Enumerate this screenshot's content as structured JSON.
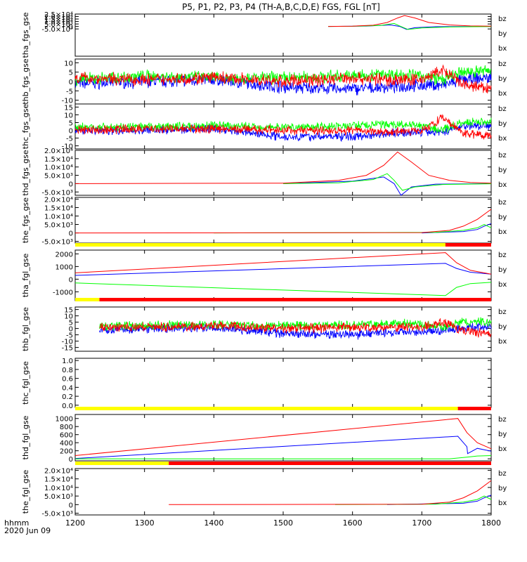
{
  "title": "P5, P1, P2, P3, P4 (TH-A,B,C,D,E) FGS, FGL [nT]",
  "time_axis": {
    "label_line1": "hhmm",
    "label_line2": "2020 Jun 09",
    "ticks": [
      "1200",
      "1300",
      "1400",
      "1500",
      "1600",
      "1700",
      "1800"
    ]
  },
  "colors": {
    "bz": "#ff0000",
    "by": "#00ff00",
    "bx": "#0000ff",
    "mode_slow": "#ffff00",
    "mode_fast": "#ff0000"
  },
  "chart_data": [
    {
      "type": "line",
      "ylabel": "tha_fgs_gse",
      "xlim": [
        1200,
        1800
      ],
      "ylim": [
        -60000,
        25000
      ],
      "yticks": [
        "2.5×10⁴",
        "2.0×10⁴",
        "1.5×10⁴",
        "1.0×10⁴",
        "5.0×10³",
        "0",
        "-5.0×10³"
      ],
      "ytick_values": [
        25000,
        20000,
        15000,
        10000,
        5000,
        0,
        -5000
      ],
      "legend": [
        "bz",
        "by",
        "bx"
      ],
      "series": [
        {
          "name": "bz",
          "x": [
            1565,
            1600,
            1630,
            1650,
            1665,
            1675,
            1690,
            1710,
            1740,
            1770,
            1800
          ],
          "y": [
            0,
            600,
            2500,
            8000,
            17000,
            22000,
            17000,
            8000,
            3000,
            1000,
            500
          ]
        },
        {
          "name": "by",
          "x": [
            1565,
            1600,
            1640,
            1660,
            1668,
            1680,
            1700,
            1740,
            1800
          ],
          "y": [
            0,
            400,
            2000,
            6000,
            1000,
            -6000,
            -3000,
            -1000,
            -200
          ]
        },
        {
          "name": "bx",
          "x": [
            1565,
            1620,
            1655,
            1668,
            1678,
            1690,
            1720,
            1800
          ],
          "y": [
            0,
            800,
            3000,
            0,
            -6000,
            -2500,
            -500,
            0
          ]
        }
      ]
    },
    {
      "type": "line",
      "ylabel": "thb_fgs_gse",
      "xlim": [
        1200,
        1800
      ],
      "ylim": [
        -12,
        12
      ],
      "yticks": [
        "10",
        "5",
        "0",
        "-5",
        "-10"
      ],
      "ytick_values": [
        10,
        5,
        0,
        -5,
        -10
      ],
      "legend": [
        "bz",
        "by",
        "bx"
      ],
      "series": [
        {
          "name": "bz",
          "x": [
            1200,
            1300,
            1400,
            1500,
            1600,
            1650,
            1700,
            1730,
            1760,
            1800
          ],
          "y": [
            2,
            1,
            2,
            0,
            2,
            1,
            1,
            6,
            -2,
            -4
          ]
        },
        {
          "name": "by",
          "x": [
            1200,
            1300,
            1400,
            1500,
            1600,
            1650,
            1700,
            1730,
            1760,
            1800
          ],
          "y": [
            1,
            3,
            2,
            2,
            3,
            4,
            3,
            1,
            5,
            6
          ]
        },
        {
          "name": "bx",
          "x": [
            1200,
            1300,
            1400,
            1500,
            1600,
            1650,
            1700,
            1730,
            1760,
            1800
          ],
          "y": [
            -1,
            0,
            1,
            -3,
            -4,
            -3,
            -2,
            -2,
            1,
            2
          ]
        }
      ]
    },
    {
      "type": "line",
      "ylabel": "thc_fgs_gse",
      "xlim": [
        1200,
        1800
      ],
      "ylim": [
        -12,
        17
      ],
      "yticks": [
        "15",
        "10",
        "5",
        "0",
        "-5",
        "-10"
      ],
      "ytick_values": [
        15,
        10,
        5,
        0,
        -5,
        -10
      ],
      "legend": [
        "bz",
        "by",
        "bx"
      ],
      "series": [
        {
          "name": "bz",
          "x": [
            1200,
            1300,
            1400,
            1500,
            1600,
            1650,
            1700,
            1730,
            1760,
            1800
          ],
          "y": [
            0,
            1,
            1,
            0,
            0,
            -1,
            0,
            8,
            -2,
            -3
          ]
        },
        {
          "name": "by",
          "x": [
            1200,
            1300,
            1400,
            1500,
            1600,
            1650,
            1700,
            1730,
            1760,
            1800
          ],
          "y": [
            2,
            2,
            3,
            2,
            3,
            4,
            3,
            0,
            5,
            6
          ]
        },
        {
          "name": "bx",
          "x": [
            1200,
            1300,
            1400,
            1500,
            1600,
            1650,
            1700,
            1730,
            1760,
            1800
          ],
          "y": [
            0,
            0,
            1,
            -4,
            -4,
            -2,
            -1,
            -1,
            3,
            3
          ]
        }
      ]
    },
    {
      "type": "line",
      "ylabel": "thd_fgs_gse",
      "xlim": [
        1200,
        1800
      ],
      "ylim": [
        -7000,
        20000
      ],
      "yticks": [
        "2.0×10⁴",
        "1.5×10⁴",
        "1.0×10⁴",
        "5.0×10³",
        "0",
        "-5.0×10³"
      ],
      "ytick_values": [
        20000,
        15000,
        10000,
        5000,
        0,
        -5000
      ],
      "legend": [
        "bz",
        "by",
        "bx"
      ],
      "series": [
        {
          "name": "bz",
          "x": [
            1200,
            1500,
            1580,
            1620,
            1645,
            1665,
            1685,
            1710,
            1740,
            1770,
            1800
          ],
          "y": [
            0,
            300,
            2000,
            5000,
            11000,
            19000,
            13000,
            5000,
            2000,
            700,
            300
          ]
        },
        {
          "name": "by",
          "x": [
            1500,
            1580,
            1630,
            1650,
            1660,
            1672,
            1690,
            1730,
            1800
          ],
          "y": [
            0,
            500,
            2500,
            6000,
            2000,
            -4000,
            -2000,
            -500,
            -100
          ]
        },
        {
          "name": "bx",
          "x": [
            1500,
            1600,
            1645,
            1660,
            1670,
            1685,
            1720,
            1800
          ],
          "y": [
            0,
            1500,
            4000,
            0,
            -7000,
            -2000,
            -300,
            0
          ]
        }
      ]
    },
    {
      "type": "line",
      "ylabel": "the_fgs_gse",
      "xlim": [
        1200,
        1800
      ],
      "ylim": [
        -6000,
        21000
      ],
      "yticks": [
        "2.0×10⁴",
        "1.5×10⁴",
        "1.0×10⁴",
        "5.0×10³",
        "0",
        "-5.0×10³"
      ],
      "ytick_values": [
        20000,
        15000,
        10000,
        5000,
        0,
        -5000
      ],
      "legend": [
        "bz",
        "by",
        "bx"
      ],
      "series": [
        {
          "name": "bz",
          "x": [
            1200,
            1700,
            1740,
            1760,
            1780,
            1800
          ],
          "y": [
            0,
            200,
            1500,
            4000,
            8000,
            14000
          ]
        },
        {
          "name": "by",
          "x": [
            1400,
            1720,
            1760,
            1780,
            1790,
            1800
          ],
          "y": [
            0,
            300,
            1500,
            3000,
            5000,
            3000
          ]
        },
        {
          "name": "bx",
          "x": [
            1700,
            1760,
            1780,
            1790,
            1800
          ],
          "y": [
            0,
            800,
            2000,
            4000,
            5500
          ]
        }
      ]
    },
    {
      "type": "line",
      "ylabel": "tha_fgl_gse",
      "xlim": [
        1200,
        1800
      ],
      "ylim": [
        -1700,
        2300
      ],
      "yticks": [
        "2000",
        "1000",
        "0",
        "-1000"
      ],
      "ytick_values": [
        2000,
        1000,
        0,
        -1000
      ],
      "legend": [
        "bz",
        "by",
        "bx"
      ],
      "mode_bar": {
        "switch_x": 1734
      },
      "series": [
        {
          "name": "bz",
          "x": [
            1200,
            1734,
            1750,
            1770,
            1800
          ],
          "y": [
            500,
            2100,
            1300,
            700,
            400
          ]
        },
        {
          "name": "by",
          "x": [
            1200,
            1734,
            1750,
            1770,
            1800
          ],
          "y": [
            -300,
            -1300,
            -650,
            -350,
            -250
          ]
        },
        {
          "name": "bx",
          "x": [
            1200,
            1734,
            1750,
            1770,
            1800
          ],
          "y": [
            300,
            1250,
            850,
            550,
            400
          ]
        }
      ]
    },
    {
      "type": "line",
      "ylabel": "thb_fgl_gse",
      "xlim": [
        1200,
        1800
      ],
      "ylim": [
        -18,
        17
      ],
      "yticks": [
        "15",
        "10",
        "5",
        "0",
        "-5",
        "-10",
        "-15"
      ],
      "ytick_values": [
        15,
        10,
        5,
        0,
        -5,
        -10,
        -15
      ],
      "legend": [
        "bz",
        "by",
        "bx"
      ],
      "mode_bar": {
        "switch_x": 1235
      },
      "series": [
        {
          "name": "bz",
          "x": [
            1235,
            1300,
            1400,
            1500,
            1600,
            1650,
            1700,
            1730,
            1760,
            1800
          ],
          "y": [
            1,
            1,
            2,
            0,
            1,
            1,
            1,
            5,
            -2,
            -4
          ]
        },
        {
          "name": "by",
          "x": [
            1235,
            1300,
            1400,
            1500,
            1600,
            1650,
            1700,
            1730,
            1760,
            1800
          ],
          "y": [
            2,
            2,
            3,
            2,
            3,
            4,
            3,
            1,
            5,
            5
          ]
        },
        {
          "name": "bx",
          "x": [
            1235,
            1300,
            1400,
            1500,
            1600,
            1650,
            1700,
            1730,
            1760,
            1800
          ],
          "y": [
            -1,
            0,
            1,
            -4,
            -5,
            -3,
            -2,
            -2,
            1,
            1
          ]
        }
      ]
    },
    {
      "type": "line",
      "ylabel": "thc_fgl_gse",
      "xlim": [
        1200,
        1800
      ],
      "ylim": [
        -0.05,
        1.05
      ],
      "yticks": [
        "1.0",
        "0.8",
        "0.6",
        "0.4",
        "0.2",
        "0.0"
      ],
      "ytick_values": [
        1.0,
        0.8,
        0.6,
        0.4,
        0.2,
        0.0
      ],
      "legend": [],
      "series": []
    },
    {
      "type": "line",
      "ylabel": "thd_fgl_gse",
      "xlim": [
        1200,
        1800
      ],
      "ylim": [
        -50,
        1100
      ],
      "yticks": [
        "1000",
        "800",
        "600",
        "400",
        "200",
        "0"
      ],
      "ytick_values": [
        1000,
        800,
        600,
        400,
        200,
        0
      ],
      "legend": [
        "bz",
        "by",
        "bx"
      ],
      "mode_bar": {
        "switch_x": 1752
      },
      "series": [
        {
          "name": "bz",
          "x": [
            1200,
            1752,
            1765,
            1780,
            1800
          ],
          "y": [
            80,
            1000,
            650,
            400,
            250
          ]
        },
        {
          "name": "by",
          "x": [
            1200,
            1740,
            1765,
            1780,
            1800
          ],
          "y": [
            0,
            0,
            40,
            70,
            80
          ]
        },
        {
          "name": "bx",
          "x": [
            1200,
            1752,
            1765,
            1766,
            1780,
            1800
          ],
          "y": [
            10,
            560,
            300,
            130,
            260,
            190
          ]
        }
      ]
    },
    {
      "type": "line",
      "ylabel": "the_fgl_gse",
      "xlim": [
        1200,
        1800
      ],
      "ylim": [
        -6000,
        21000
      ],
      "yticks": [
        "2.0×10⁴",
        "1.5×10⁴",
        "1.0×10⁴",
        "5.0×10³",
        "0",
        "-5.0×10³"
      ],
      "ytick_values": [
        20000,
        15000,
        10000,
        5000,
        0,
        -5000
      ],
      "legend": [
        "bz",
        "by",
        "bx"
      ],
      "mode_bar": {
        "switch_x": 1335
      },
      "series": [
        {
          "name": "bz",
          "x": [
            1335,
            1700,
            1740,
            1760,
            1780,
            1800
          ],
          "y": [
            0,
            200,
            1500,
            4000,
            8000,
            14000
          ]
        },
        {
          "name": "by",
          "x": [
            1575,
            1720,
            1760,
            1780,
            1790,
            1800
          ],
          "y": [
            0,
            300,
            1500,
            3000,
            5000,
            3000
          ]
        },
        {
          "name": "bx",
          "x": [
            1650,
            1760,
            1780,
            1790,
            1800
          ],
          "y": [
            0,
            800,
            2000,
            4000,
            5500
          ]
        }
      ]
    }
  ]
}
